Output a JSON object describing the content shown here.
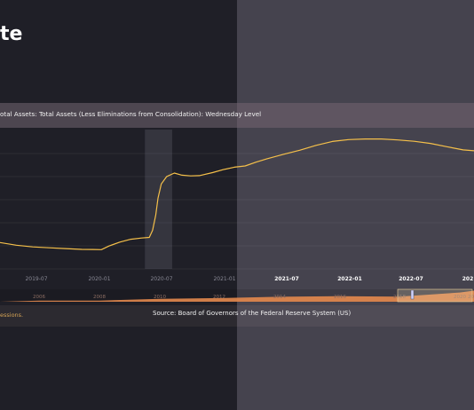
{
  "page": {
    "title_fragment": "te",
    "series_title": "otal Assets: Total Assets (Less Eliminations from Consolidation): Wednesday Level",
    "recession_note": "essions.",
    "source": "Source: Board of Governors of the Federal Reserve System (US)"
  },
  "colors": {
    "line": "#f5c04a",
    "recession_shade": "#35353e",
    "navigator_fill": "#e4894e",
    "left_bg": "#1f1f27",
    "right_bg": "#45434e"
  },
  "chart_data": {
    "type": "line",
    "title": "otal Assets: Total Assets (Less Eliminations from Consolidation): Wednesday Level",
    "xlabel": "",
    "ylabel": "",
    "grid": true,
    "x_ticks": [
      "2019-07",
      "2020-01",
      "2020-07",
      "2021-01",
      "2021-07",
      "2022-01",
      "2022-07",
      "202"
    ],
    "x_range": [
      2018.75,
      2023.1
    ],
    "y_range": [
      0,
      100
    ],
    "recessions": [
      [
        2020.08,
        2020.33
      ]
    ],
    "series": [
      {
        "x": [
          2018.75,
          2018.9,
          2019.05,
          2019.2,
          2019.35,
          2019.5,
          2019.6,
          2019.68,
          2019.75,
          2019.85,
          2019.95,
          2020.05,
          2020.12,
          2020.15,
          2020.18,
          2020.2,
          2020.23,
          2020.28,
          2020.35,
          2020.42,
          2020.5,
          2020.58,
          2020.7,
          2020.8,
          2020.9,
          2021.0,
          2021.1,
          2021.2,
          2021.35,
          2021.5,
          2021.65,
          2021.8,
          2021.95,
          2022.1,
          2022.25,
          2022.4,
          2022.55,
          2022.7,
          2022.85,
          2023.0,
          2023.1
        ],
        "y": [
          20.5,
          18.4,
          17.1,
          16.4,
          15.8,
          15.2,
          15.1,
          15.0,
          17.8,
          20.8,
          23.0,
          24.0,
          24.5,
          30.0,
          42.0,
          55.0,
          66.0,
          71.8,
          74.5,
          72.8,
          72.3,
          72.5,
          74.8,
          77.2,
          79.0,
          80.0,
          83.0,
          85.6,
          89.0,
          92.2,
          96.0,
          99.0,
          100.5,
          101.0,
          101.0,
          100.2,
          99.2,
          97.5,
          95.0,
          92.5,
          91.8
        ]
      }
    ]
  },
  "navigator": {
    "ticks": [
      "2006",
      "2008",
      "2010",
      "2012",
      "2014",
      "2016",
      "2018",
      "2020",
      "2022"
    ],
    "values": [
      0.9,
      0.9,
      2.3,
      2.9,
      4.0,
      4.5,
      4.1,
      7.4,
      8.9
    ],
    "y_max": 10
  }
}
